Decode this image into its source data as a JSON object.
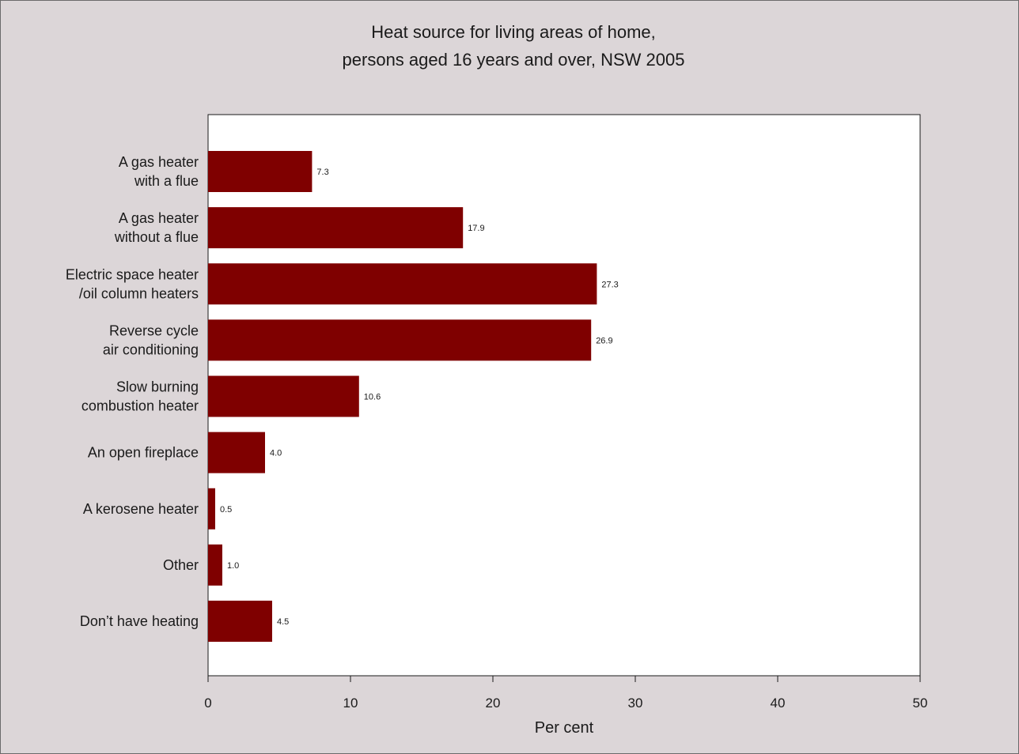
{
  "chart_data": {
    "type": "bar",
    "orientation": "horizontal",
    "title_lines": [
      "Heat source for living areas of home,",
      "persons aged 16 years and over, NSW 2005"
    ],
    "categories": [
      [
        "A gas heater",
        "with a flue"
      ],
      [
        "A gas heater",
        "without a flue"
      ],
      [
        "Electric space heater",
        "/oil column heaters"
      ],
      [
        "Reverse cycle",
        "air conditioning"
      ],
      [
        "Slow burning",
        "combustion heater"
      ],
      [
        "An open fireplace"
      ],
      [
        "A kerosene heater"
      ],
      [
        "Other"
      ],
      [
        "Don’t have heating"
      ]
    ],
    "values": [
      7.3,
      17.9,
      27.3,
      26.9,
      10.6,
      4.0,
      0.5,
      1.0,
      4.5
    ],
    "value_labels": [
      "7.3",
      "17.9",
      "27.3",
      "26.9",
      "10.6",
      "4.0",
      "0.5",
      "1.0",
      "4.5"
    ],
    "xlabel": "Per cent",
    "ylabel": "",
    "xlim": [
      0,
      50
    ],
    "xticks": [
      0,
      10,
      20,
      30,
      40,
      50
    ],
    "grid": false,
    "colors": {
      "bar": "#7f0000",
      "background": "#dcd6d8",
      "plot_background": "#ffffff",
      "axis": "#1a1a1a"
    }
  }
}
